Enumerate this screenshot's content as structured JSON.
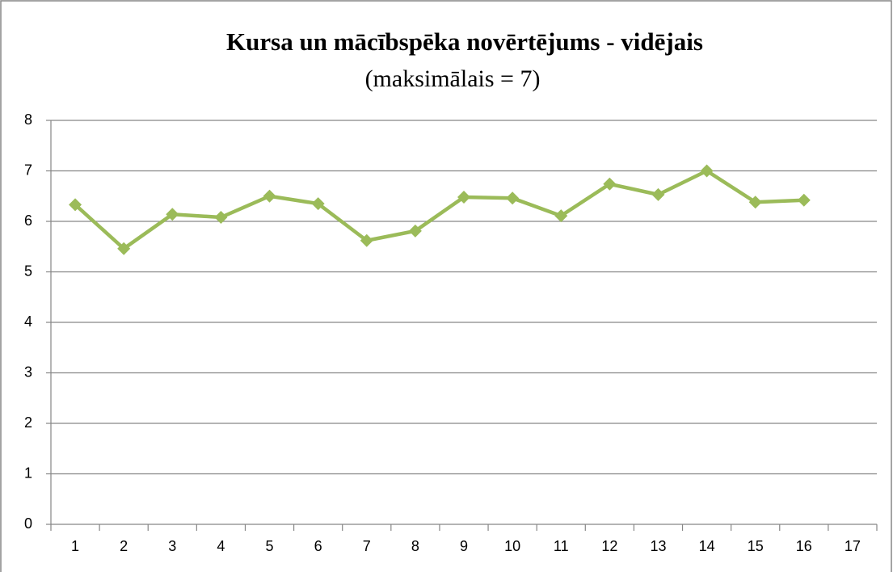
{
  "chart_data": {
    "type": "line",
    "title": "Kursa un mācībspēka novērtējums - vidējais",
    "subtitle": "(maksimālais = 7)",
    "categories": [
      "1",
      "2",
      "3",
      "4",
      "5",
      "6",
      "7",
      "8",
      "9",
      "10",
      "11",
      "12",
      "13",
      "14",
      "15",
      "16",
      "17"
    ],
    "series": [
      {
        "name": "vidējais",
        "color": "#9bbb59",
        "values": [
          6.33,
          5.46,
          6.14,
          6.08,
          6.5,
          6.35,
          5.62,
          5.81,
          6.48,
          6.46,
          6.11,
          6.74,
          6.53,
          7.0,
          6.38,
          6.42,
          null
        ]
      }
    ],
    "ylim": [
      0,
      8
    ],
    "yticks": [
      0,
      1,
      2,
      3,
      4,
      5,
      6,
      7,
      8
    ],
    "grid": true
  }
}
